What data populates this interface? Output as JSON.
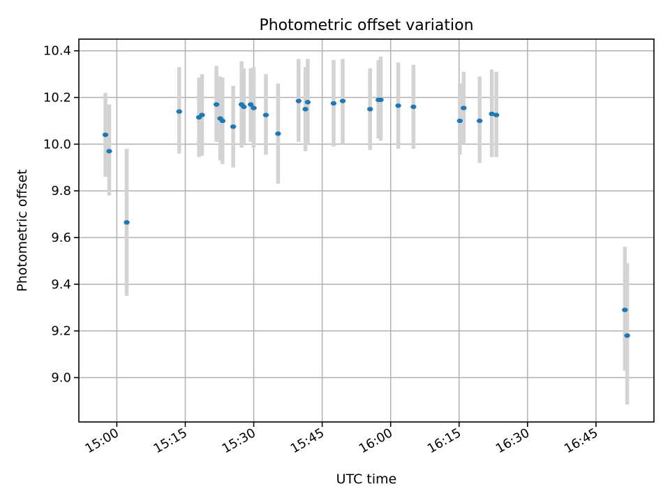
{
  "chart_data": {
    "type": "scatter",
    "title": "Photometric offset variation",
    "xlabel": "UTC time",
    "ylabel": "Photometric offset",
    "xlim": [
      "14:51:41",
      "16:57:42"
    ],
    "ylim": [
      8.81,
      10.45
    ],
    "x_ticks": [
      "15:00",
      "15:15",
      "15:30",
      "15:45",
      "16:00",
      "16:15",
      "16:30",
      "16:45"
    ],
    "y_ticks": [
      "9.0",
      "9.2",
      "9.4",
      "9.6",
      "9.8",
      "10.0",
      "10.2",
      "10.4"
    ],
    "grid": true,
    "marker_color": "#1f77b4",
    "errorbar_color": "#d3d3d3",
    "points": [
      {
        "t": "14:57:30",
        "y": 10.04,
        "lo": 9.86,
        "hi": 10.22
      },
      {
        "t": "14:58:20",
        "y": 9.97,
        "lo": 9.78,
        "hi": 10.17
      },
      {
        "t": "15:02:10",
        "y": 9.665,
        "lo": 9.35,
        "hi": 9.98
      },
      {
        "t": "15:13:40",
        "y": 10.14,
        "lo": 9.96,
        "hi": 10.33
      },
      {
        "t": "15:18:00",
        "y": 10.115,
        "lo": 9.945,
        "hi": 10.285
      },
      {
        "t": "15:18:40",
        "y": 10.125,
        "lo": 9.95,
        "hi": 10.3
      },
      {
        "t": "15:21:50",
        "y": 10.17,
        "lo": 10.01,
        "hi": 10.335
      },
      {
        "t": "15:22:40",
        "y": 10.11,
        "lo": 9.93,
        "hi": 10.29
      },
      {
        "t": "15:23:10",
        "y": 10.1,
        "lo": 9.915,
        "hi": 10.285
      },
      {
        "t": "15:25:30",
        "y": 10.075,
        "lo": 9.9,
        "hi": 10.25
      },
      {
        "t": "15:27:20",
        "y": 10.17,
        "lo": 9.985,
        "hi": 10.355
      },
      {
        "t": "15:27:50",
        "y": 10.16,
        "lo": 9.995,
        "hi": 10.325
      },
      {
        "t": "15:29:20",
        "y": 10.17,
        "lo": 10.01,
        "hi": 10.325
      },
      {
        "t": "15:30:00",
        "y": 10.155,
        "lo": 9.985,
        "hi": 10.33
      },
      {
        "t": "15:32:40",
        "y": 10.125,
        "lo": 9.955,
        "hi": 10.3
      },
      {
        "t": "15:35:20",
        "y": 10.045,
        "lo": 9.83,
        "hi": 10.26
      },
      {
        "t": "15:39:50",
        "y": 10.185,
        "lo": 10.01,
        "hi": 10.365
      },
      {
        "t": "15:41:20",
        "y": 10.15,
        "lo": 9.97,
        "hi": 10.33
      },
      {
        "t": "15:41:50",
        "y": 10.18,
        "lo": 10.0,
        "hi": 10.365
      },
      {
        "t": "15:47:30",
        "y": 10.175,
        "lo": 9.99,
        "hi": 10.36
      },
      {
        "t": "15:49:30",
        "y": 10.185,
        "lo": 10.0,
        "hi": 10.365
      },
      {
        "t": "15:55:30",
        "y": 10.15,
        "lo": 9.975,
        "hi": 10.325
      },
      {
        "t": "15:57:20",
        "y": 10.19,
        "lo": 10.025,
        "hi": 10.36
      },
      {
        "t": "15:57:50",
        "y": 10.19,
        "lo": 10.015,
        "hi": 10.375
      },
      {
        "t": "16:01:40",
        "y": 10.165,
        "lo": 9.98,
        "hi": 10.35
      },
      {
        "t": "16:05:00",
        "y": 10.16,
        "lo": 9.98,
        "hi": 10.34
      },
      {
        "t": "16:15:10",
        "y": 10.1,
        "lo": 9.955,
        "hi": 10.26
      },
      {
        "t": "16:16:00",
        "y": 10.155,
        "lo": 10.0,
        "hi": 10.31
      },
      {
        "t": "16:19:30",
        "y": 10.1,
        "lo": 9.92,
        "hi": 10.29
      },
      {
        "t": "16:22:10",
        "y": 10.13,
        "lo": 9.945,
        "hi": 10.32
      },
      {
        "t": "16:23:10",
        "y": 10.125,
        "lo": 9.945,
        "hi": 10.31
      },
      {
        "t": "16:51:20",
        "y": 9.29,
        "lo": 9.03,
        "hi": 9.56
      },
      {
        "t": "16:51:50",
        "y": 9.18,
        "lo": 8.885,
        "hi": 9.49
      }
    ]
  }
}
